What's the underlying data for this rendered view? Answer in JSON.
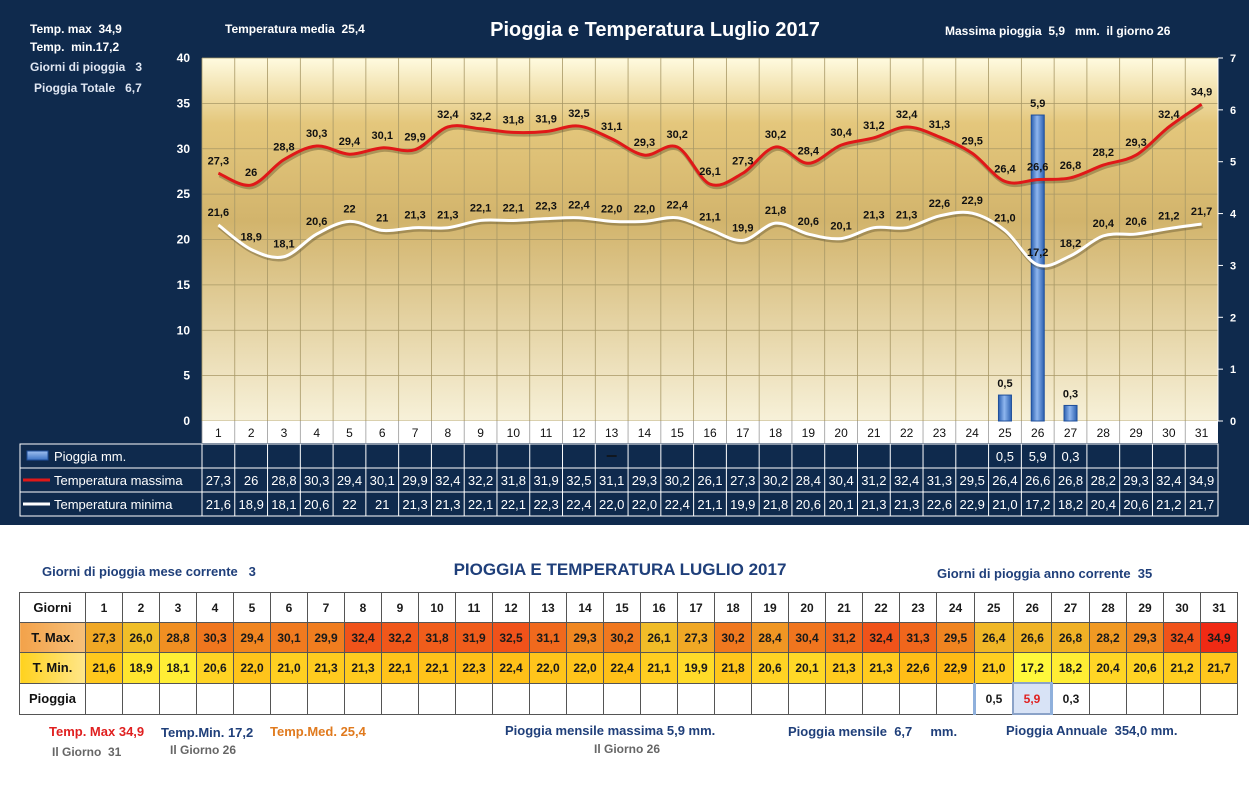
{
  "header": {
    "temp_max": "Temp. max  34,9",
    "temp_min": "Temp.  min.17,2",
    "giorni_pioggia": "Giorni di pioggia   3",
    "pioggia_totale": "Pioggia Totale   6,7",
    "temp_media": "Temperatura media  25,4",
    "title": "Pioggia e Temperatura Luglio 2017",
    "massima_pioggia": "Massima pioggia  5,9   mm.  il giorno 26"
  },
  "chart_data": {
    "type": "line",
    "title": "Pioggia e Temperatura Luglio 2017",
    "categories": [
      "1",
      "2",
      "3",
      "4",
      "5",
      "6",
      "7",
      "8",
      "9",
      "10",
      "11",
      "12",
      "13",
      "14",
      "15",
      "16",
      "17",
      "18",
      "19",
      "20",
      "21",
      "22",
      "23",
      "24",
      "25",
      "26",
      "27",
      "28",
      "29",
      "30",
      "31"
    ],
    "y_left": {
      "min": 0,
      "max": 40,
      "ticks": [
        "0",
        "5",
        "10",
        "15",
        "20",
        "25",
        "30",
        "35",
        "40"
      ]
    },
    "y_right": {
      "min": 0,
      "max": 7,
      "ticks": [
        "0",
        "1",
        "2",
        "3",
        "4",
        "5",
        "6",
        "7"
      ]
    },
    "grid": true,
    "series": [
      {
        "name": "Pioggia mm.",
        "kind": "bar",
        "axis": "right",
        "color": "#4a86d8",
        "values": [
          null,
          null,
          null,
          null,
          null,
          null,
          null,
          null,
          null,
          null,
          null,
          null,
          null,
          null,
          null,
          null,
          null,
          null,
          null,
          null,
          null,
          null,
          null,
          null,
          0.5,
          5.9,
          0.3,
          null,
          null,
          null,
          null
        ],
        "labels": [
          "",
          "",
          "",
          "",
          "",
          "",
          "",
          "",
          "",
          "",
          "",
          "",
          "",
          "",
          "",
          "",
          "",
          "",
          "",
          "",
          "",
          "",
          "",
          "",
          "0,5",
          "5,9",
          "0,3",
          "",
          "",
          "",
          ""
        ]
      },
      {
        "name": "Temperatura massima",
        "kind": "line",
        "axis": "left",
        "color": "#e01818",
        "values": [
          27.3,
          26,
          28.8,
          30.3,
          29.4,
          30.1,
          29.9,
          32.4,
          32.2,
          31.8,
          31.9,
          32.5,
          31.1,
          29.3,
          30.2,
          26.1,
          27.3,
          30.2,
          28.4,
          30.4,
          31.2,
          32.4,
          31.3,
          29.5,
          26.4,
          26.6,
          26.8,
          28.2,
          29.3,
          32.4,
          34.9
        ],
        "labels": [
          "27,3",
          "26",
          "28,8",
          "30,3",
          "29,4",
          "30,1",
          "29,9",
          "32,4",
          "32,2",
          "31,8",
          "31,9",
          "32,5",
          "31,1",
          "29,3",
          "30,2",
          "26,1",
          "27,3",
          "30,2",
          "28,4",
          "30,4",
          "31,2",
          "32,4",
          "31,3",
          "29,5",
          "26,4",
          "26,6",
          "26,8",
          "28,2",
          "29,3",
          "32,4",
          "34,9"
        ]
      },
      {
        "name": "Temperatura minima",
        "kind": "line",
        "axis": "left",
        "color": "#ffffff",
        "values": [
          21.6,
          18.9,
          18.1,
          20.6,
          22,
          21,
          21.3,
          21.3,
          22.1,
          22.1,
          22.3,
          22.4,
          22.0,
          22.0,
          22.4,
          21.1,
          19.9,
          21.8,
          20.6,
          20.1,
          21.3,
          21.3,
          22.6,
          22.9,
          21.0,
          17.2,
          18.2,
          20.4,
          20.6,
          21.2,
          21.7
        ],
        "labels": [
          "21,6",
          "18,9",
          "18,1",
          "20,6",
          "22",
          "21",
          "21,3",
          "21,3",
          "22,1",
          "22,1",
          "22,3",
          "22,4",
          "22,0",
          "22,0",
          "22,4",
          "21,1",
          "19,9",
          "21,8",
          "20,6",
          "20,1",
          "21,3",
          "21,3",
          "22,6",
          "22,9",
          "21,0",
          "17,2",
          "18,2",
          "20,4",
          "20,6",
          "21,2",
          "21,7"
        ]
      }
    ],
    "table_rain_labels": [
      "",
      "",
      "",
      "",
      "",
      "",
      "",
      "",
      "",
      "",
      "",
      "",
      "",
      "",
      "",
      "",
      "",
      "",
      "",
      "",
      "",
      "",
      "",
      "",
      "0,5",
      "5,9",
      "0,3",
      "",
      "",
      "",
      ""
    ],
    "table_rain_dash_day": "13"
  },
  "stats": {
    "giorni_mese": "Giorni di pioggia mese corrente   3",
    "title": "PIOGGIA E TEMPERATURA LUGLIO 2017",
    "giorni_anno": "Giorni di pioggia anno corrente  35",
    "row_labels": {
      "giorni": "Giorni",
      "tmax": "T. Max.",
      "tmin": "T. Min.",
      "pioggia": "Pioggia"
    },
    "days": [
      "1",
      "2",
      "3",
      "4",
      "5",
      "6",
      "7",
      "8",
      "9",
      "10",
      "11",
      "12",
      "13",
      "14",
      "15",
      "16",
      "17",
      "18",
      "19",
      "20",
      "21",
      "22",
      "23",
      "24",
      "25",
      "26",
      "27",
      "28",
      "29",
      "30",
      "31"
    ],
    "tmax": [
      "27,3",
      "26,0",
      "28,8",
      "30,3",
      "29,4",
      "30,1",
      "29,9",
      "32,4",
      "32,2",
      "31,8",
      "31,9",
      "32,5",
      "31,1",
      "29,3",
      "30,2",
      "26,1",
      "27,3",
      "30,2",
      "28,4",
      "30,4",
      "31,2",
      "32,4",
      "31,3",
      "29,5",
      "26,4",
      "26,6",
      "26,8",
      "28,2",
      "29,3",
      "32,4",
      "34,9"
    ],
    "tmin": [
      "21,6",
      "18,9",
      "18,1",
      "20,6",
      "22,0",
      "21,0",
      "21,3",
      "21,3",
      "22,1",
      "22,1",
      "22,3",
      "22,4",
      "22,0",
      "22,0",
      "22,4",
      "21,1",
      "19,9",
      "21,8",
      "20,6",
      "20,1",
      "21,3",
      "21,3",
      "22,6",
      "22,9",
      "21,0",
      "17,2",
      "18,2",
      "20,4",
      "20,6",
      "21,2",
      "21,7"
    ],
    "pioggia": [
      "",
      "",
      "",
      "",
      "",
      "",
      "",
      "",
      "",
      "",
      "",
      "",
      "",
      "",
      "",
      "",
      "",
      "",
      "",
      "",
      "",
      "",
      "",
      "",
      "0,5",
      "5,9",
      "0,3",
      "",
      "",
      "",
      ""
    ],
    "tmax_label": "Temp. Max",
    "tmax_value": "34,9",
    "tmin_label": "Temp.Min.",
    "tmin_value": "17,2",
    "tmed_label": "Temp.Med.",
    "tmed_value": "25,4",
    "giorno_max": "Il Giorno  31",
    "giorno_min": "Il Giorno 26",
    "pioggia_mensile_massima": "Pioggia mensile massima 5,9 mm.",
    "giorno_pioggia_max": "Il Giorno 26",
    "pioggia_mensile": "Pioggia mensile  6,7     mm.",
    "pioggia_annuale": "Pioggia Annuale  354,0 mm."
  }
}
